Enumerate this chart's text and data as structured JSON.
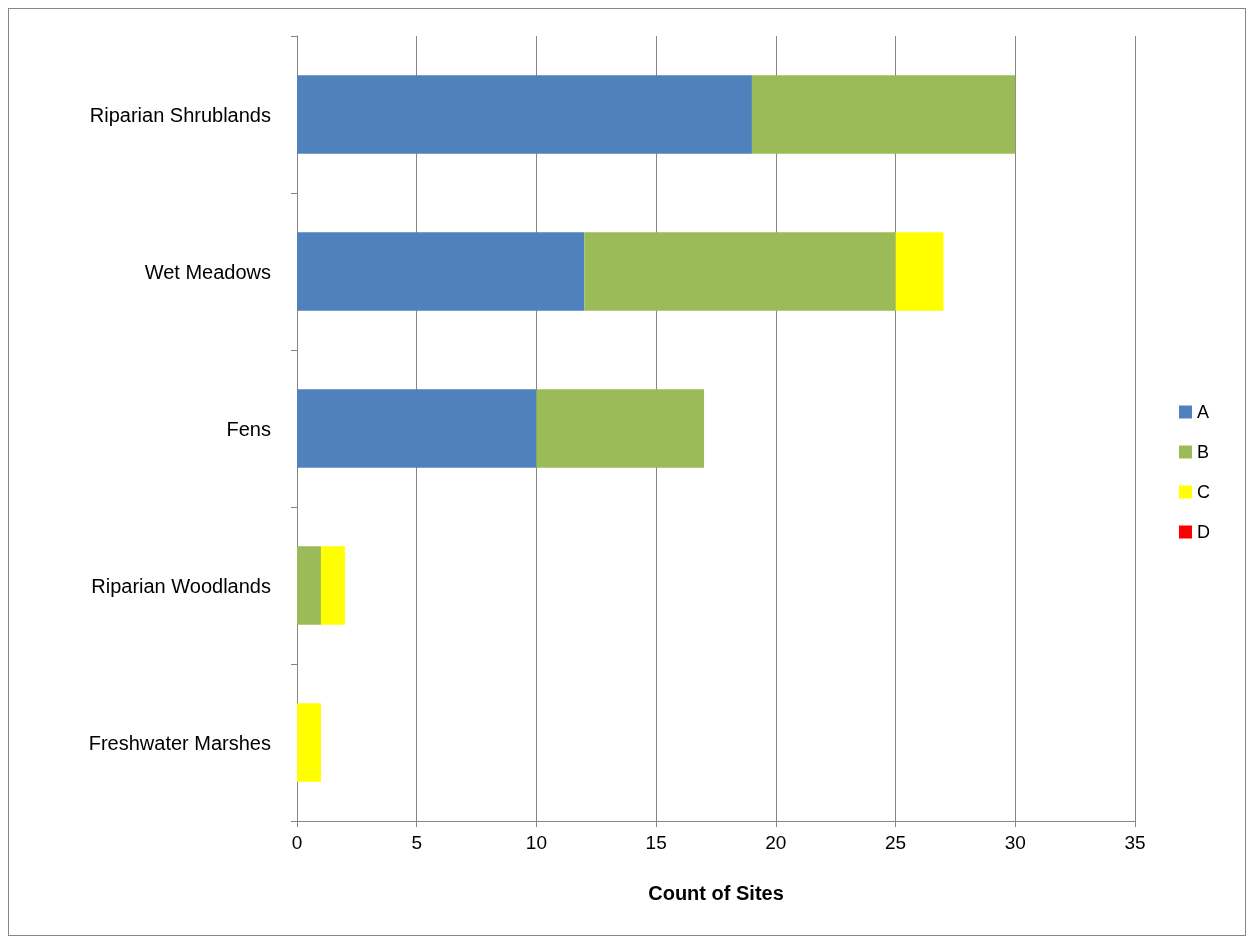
{
  "chart_data": {
    "type": "bar",
    "orientation": "horizontal",
    "stacked": true,
    "xlabel": "Count of Sites",
    "categories": [
      "Riparian Shrublands",
      "Wet Meadows",
      "Fens",
      "Riparian Woodlands",
      "Freshwater Marshes"
    ],
    "series": [
      {
        "name": "A",
        "color": "#4f81bd",
        "values": [
          19,
          12,
          10,
          null,
          null
        ]
      },
      {
        "name": "B",
        "color": "#9bbb59",
        "values": [
          11,
          13,
          7,
          1,
          null
        ]
      },
      {
        "name": "C",
        "color": "#ffff00",
        "values": [
          null,
          2,
          null,
          1,
          1
        ]
      },
      {
        "name": "D",
        "color": "#ff0000",
        "values": [
          null,
          null,
          null,
          null,
          null
        ]
      }
    ],
    "xlim": [
      0,
      35
    ],
    "xticks": [
      0,
      5,
      10,
      15,
      20,
      25,
      30,
      35
    ],
    "grid": "x",
    "legend": "right"
  }
}
